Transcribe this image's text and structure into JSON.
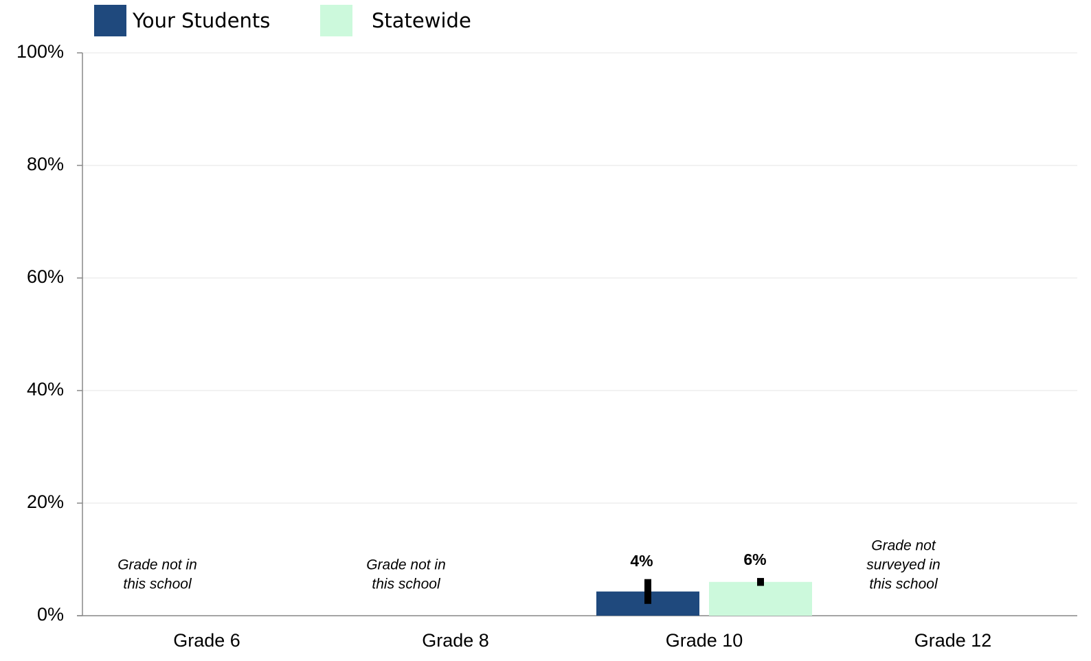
{
  "chart_data": {
    "type": "bar",
    "categories": [
      "Grade 6",
      "Grade 8",
      "Grade 10",
      "Grade 12"
    ],
    "series": [
      {
        "name": "Your Students",
        "color": "#1f497d",
        "values": [
          null,
          null,
          4.3,
          null
        ],
        "errors": [
          null,
          null,
          2.2,
          null
        ],
        "value_labels": [
          null,
          null,
          "4%",
          null
        ]
      },
      {
        "name": "Statewide",
        "color": "#ccf9dc",
        "values": [
          null,
          null,
          6.0,
          null
        ],
        "errors": [
          null,
          null,
          0.7,
          null
        ],
        "value_labels": [
          null,
          null,
          "6%",
          null
        ]
      }
    ],
    "notes": [
      [
        "Grade not in",
        "this school"
      ],
      [
        "Grade not in",
        "this school"
      ],
      null,
      [
        "Grade not",
        "surveyed in",
        "this school"
      ]
    ],
    "ylim": [
      0,
      100
    ],
    "yticks": [
      {
        "value": 0,
        "label": "0%"
      },
      {
        "value": 20,
        "label": "20%"
      },
      {
        "value": 40,
        "label": "40%"
      },
      {
        "value": 60,
        "label": "60%"
      },
      {
        "value": 80,
        "label": "80%"
      },
      {
        "value": 100,
        "label": "100%"
      }
    ],
    "grid": true
  }
}
